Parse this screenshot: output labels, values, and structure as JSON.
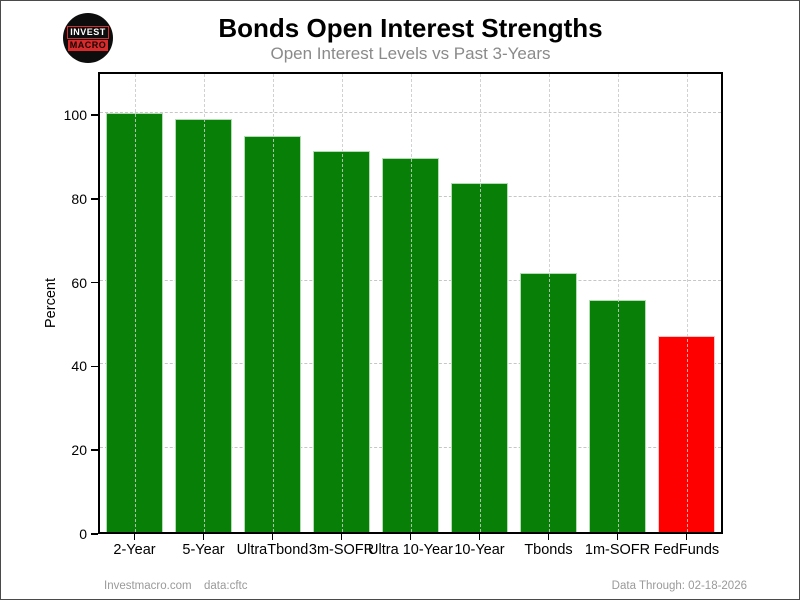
{
  "header": {
    "logo": {
      "line1": "INVEST",
      "line2": "MACRO"
    },
    "title": "Bonds Open Interest Strengths",
    "subtitle": "Open Interest Levels vs Past 3-Years"
  },
  "chart_data": {
    "type": "bar",
    "title": "Bonds Open Interest Strengths",
    "subtitle": "Open Interest Levels vs Past 3-Years",
    "categories": [
      "2-Year",
      "5-Year",
      "UltraTbond",
      "3m-SOFR",
      "Ultra 10-Year",
      "10-Year",
      "Tbonds",
      "1m-SOFR",
      "FedFunds"
    ],
    "values": [
      100.0,
      98.6,
      94.6,
      90.9,
      89.2,
      83.2,
      61.8,
      55.3,
      46.7
    ],
    "bar_colors": [
      "#088008",
      "#088008",
      "#088008",
      "#088008",
      "#088008",
      "#088008",
      "#088008",
      "#088008",
      "#ff0000"
    ],
    "bar_edge_colors": [
      "#b2dcb2",
      "#b2dcb2",
      "#b2dcb2",
      "#b2dcb2",
      "#b2dcb2",
      "#b2dcb2",
      "#b2dcb2",
      "#b2dcb2",
      "#ffc6c6"
    ],
    "xlabel": "",
    "ylabel": "Percent",
    "yticks": [
      0,
      20,
      40,
      60,
      80,
      100
    ],
    "ylim": [
      0,
      109.3
    ],
    "grid": true,
    "grid_style": "dashed",
    "legend": "none"
  },
  "footer": {
    "site": "Investmacro.com",
    "source": "data:cftc",
    "data_through": "Data Through: 02-18-2026"
  },
  "colors": {
    "bar_green": "#088008",
    "bar_red": "#ff0000",
    "grid": "#c9c9c9",
    "subtitle_gray": "#8a8a8a",
    "footer_gray": "#9a9a9a",
    "logo_red": "#d92b2b",
    "axis_black": "#000000"
  }
}
